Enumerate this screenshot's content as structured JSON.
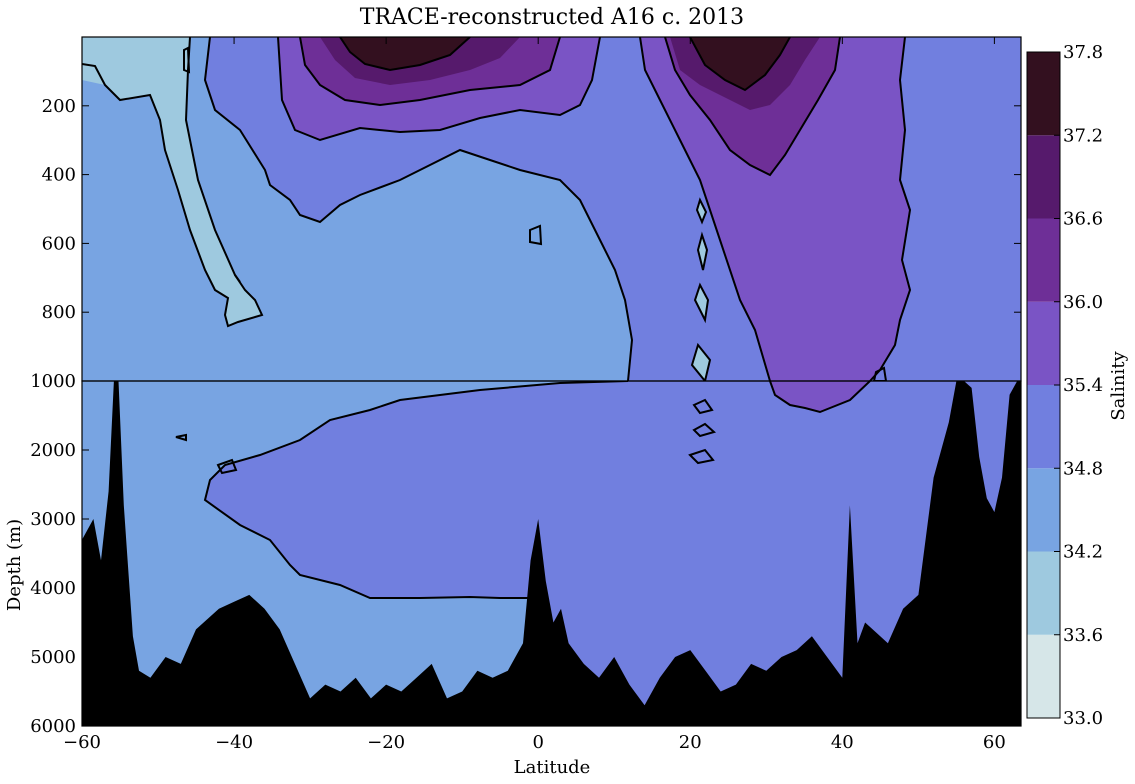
{
  "chart_data": {
    "type": "contour",
    "title": "TRACE-reconstructed A16 c. 2013",
    "xlabel": "Latitude",
    "ylabel": "Depth (m)",
    "xlim": [
      -60,
      63.5
    ],
    "ylim_upper": [
      0,
      1000
    ],
    "ylim_lower": [
      1000,
      6000
    ],
    "x_ticks": [
      -60,
      -40,
      -20,
      0,
      20,
      40,
      60
    ],
    "y_ticks_upper": [
      200,
      400,
      600,
      800,
      1000
    ],
    "y_ticks_lower": [
      1000,
      2000,
      3000,
      4000,
      5000,
      6000
    ],
    "colorbar": {
      "label": "Salinity",
      "levels": [
        33.0,
        33.6,
        34.2,
        34.8,
        35.4,
        36.0,
        36.6,
        37.2,
        37.8
      ],
      "colors": [
        "#d6e6e8",
        "#9ec9df",
        "#78a4e2",
        "#717fdf",
        "#7a54c5",
        "#6e2f97",
        "#561a6c",
        "#33101f"
      ]
    },
    "seafloor_color": "#000000",
    "bathymetry": {
      "latitude": [
        -60,
        -58.5,
        -57.5,
        -56.5,
        -55.8,
        -55.2,
        -54.5,
        -54,
        -53.3,
        -52.5,
        -51,
        -49,
        -47,
        -45,
        -42,
        -40,
        -38,
        -36,
        -34,
        -32,
        -30,
        -28,
        -26,
        -24,
        -22,
        -20,
        -18,
        -16,
        -14,
        -12,
        -10,
        -8,
        -6,
        -4,
        -2,
        -1,
        0,
        1,
        2,
        3,
        4,
        6,
        8,
        10,
        12,
        14,
        16,
        18,
        20,
        22,
        24,
        26,
        28,
        30,
        32,
        34,
        36,
        38,
        40,
        41,
        42,
        43,
        44,
        46,
        48,
        50,
        52,
        54,
        55,
        56,
        57,
        58,
        59,
        60,
        61,
        62,
        63,
        63.5
      ],
      "depth_m": [
        3300,
        3000,
        3600,
        2600,
        1000,
        1000,
        2800,
        3600,
        4700,
        5200,
        5300,
        5000,
        5100,
        4600,
        4300,
        4200,
        4100,
        4300,
        4600,
        5100,
        5600,
        5400,
        5500,
        5300,
        5600,
        5400,
        5500,
        5300,
        5100,
        5600,
        5500,
        5200,
        5300,
        5200,
        4800,
        3600,
        3000,
        3900,
        4500,
        4300,
        4800,
        5100,
        5300,
        5000,
        5400,
        5700,
        5300,
        5000,
        4900,
        5200,
        5500,
        5400,
        5100,
        5200,
        5000,
        4900,
        4700,
        5000,
        5300,
        2800,
        4800,
        4500,
        4600,
        4800,
        4300,
        4100,
        2400,
        1600,
        1000,
        1000,
        1100,
        2100,
        2700,
        2900,
        2400,
        1200,
        1000,
        1000
      ]
    },
    "labelled_isohalines": [
      34.2,
      34.8,
      35.4,
      36.0,
      36.6,
      37.2
    ]
  }
}
